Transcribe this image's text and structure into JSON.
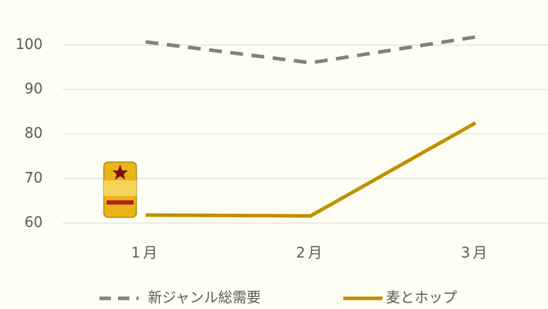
{
  "chart_data": {
    "type": "line",
    "categories": [
      "1月",
      "2月",
      "3月"
    ],
    "series": [
      {
        "name": "新ジャンル総需要",
        "color": "#808080",
        "dashed": true,
        "values": [
          100.7,
          96,
          101.8
        ]
      },
      {
        "name": "麦とホップ",
        "color": "#bf9000",
        "dashed": false,
        "values": [
          61.8,
          61.6,
          82.5
        ]
      }
    ],
    "ylim": [
      60,
      105
    ],
    "yticks": [
      60,
      70,
      80,
      90,
      100
    ],
    "grid": true
  }
}
